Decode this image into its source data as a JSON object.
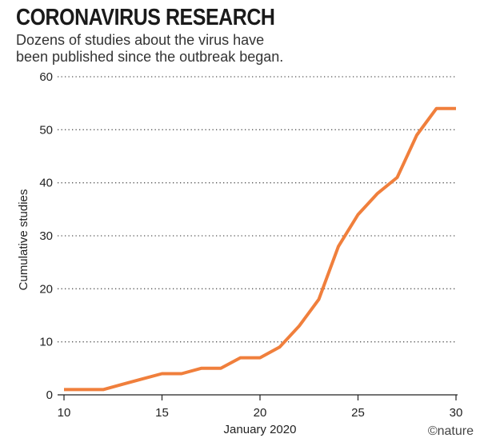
{
  "chart_data": {
    "type": "line",
    "title": "CORONAVIRUS RESEARCH",
    "subtitle_lines": [
      "Dozens of studies about the virus have",
      "been published since the outbreak began."
    ],
    "xlabel": "January 2020",
    "ylabel": "Cumulative studies",
    "xlim": [
      10,
      30
    ],
    "ylim": [
      0,
      60
    ],
    "xticks": [
      10,
      15,
      20,
      25,
      30
    ],
    "yticks": [
      0,
      10,
      20,
      30,
      40,
      50,
      60
    ],
    "grid": "horizontal-dotted",
    "series": [
      {
        "color": "#f07f3c",
        "x": [
          10,
          11,
          12,
          13,
          14,
          15,
          16,
          17,
          18,
          19,
          20,
          21,
          22,
          23,
          24,
          25,
          26,
          27,
          28,
          29,
          30
        ],
        "y": [
          1,
          1,
          1,
          2,
          3,
          4,
          4,
          5,
          5,
          7,
          7,
          9,
          13,
          18,
          28,
          34,
          38,
          41,
          49,
          54,
          54
        ]
      }
    ],
    "credit": "©nature"
  }
}
